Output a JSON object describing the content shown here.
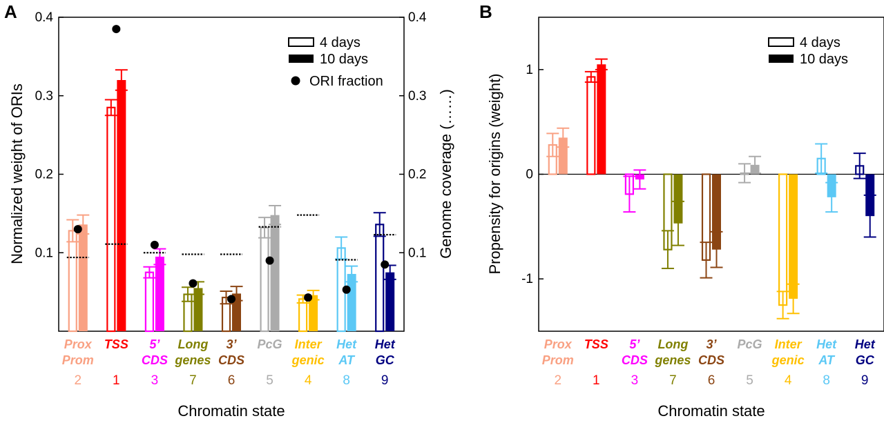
{
  "chart_data": [
    {
      "type": "bar",
      "panel": "A",
      "title": "",
      "xlabel": "Chromatin state",
      "ylabel": "Normalized weight of ORIs",
      "ylabel_right": "Genome coverage (……)",
      "ylim": [
        0,
        0.4
      ],
      "yticks": [
        "0.1",
        "0.2",
        "0.3",
        "0.4"
      ],
      "yticks_right": [
        "0.1",
        "0.2",
        "0.3",
        "0.4"
      ],
      "legend": {
        "open": "4 days",
        "filled": "10 days",
        "dot": "ORI fraction",
        "position": "top-right"
      },
      "categories": [
        {
          "line1": "Prox",
          "line2": "Prom",
          "num": "2",
          "color": "#F9A183"
        },
        {
          "line1": "TSS",
          "line2": "",
          "num": "1",
          "color": "#FF0000"
        },
        {
          "line1": "5’",
          "line2": "CDS",
          "num": "3",
          "color": "#FF00FF"
        },
        {
          "line1": "Long",
          "line2": "genes",
          "num": "7",
          "color": "#808000"
        },
        {
          "line1": "3’",
          "line2": "CDS",
          "num": "6",
          "color": "#8B4513"
        },
        {
          "line1": "PcG",
          "line2": "",
          "num": "5",
          "color": "#ABABAB"
        },
        {
          "line1": "Inter",
          "line2": "genic",
          "num": "4",
          "color": "#FFC000"
        },
        {
          "line1": "Het",
          "line2": "AT",
          "num": "8",
          "color": "#5BC8F5"
        },
        {
          "line1": "Het",
          "line2": "GC",
          "num": "9",
          "color": "#000080"
        }
      ],
      "series": [
        {
          "name": "4 days",
          "style": "open",
          "values": [
            0.128,
            0.285,
            0.075,
            0.047,
            0.043,
            0.132,
            0.041,
            0.106,
            0.136
          ],
          "err": [
            0.014,
            0.01,
            0.007,
            0.009,
            0.008,
            0.013,
            0.005,
            0.014,
            0.015
          ]
        },
        {
          "name": "10 days",
          "style": "filled",
          "values": [
            0.136,
            0.32,
            0.095,
            0.055,
            0.048,
            0.148,
            0.046,
            0.073,
            0.075
          ],
          "err": [
            0.012,
            0.013,
            0.01,
            0.008,
            0.009,
            0.012,
            0.006,
            0.01,
            0.009
          ]
        }
      ],
      "ori_fraction": [
        0.13,
        0.385,
        0.11,
        0.061,
        0.041,
        0.09,
        0.043,
        0.053,
        0.085
      ],
      "genome_coverage": [
        0.094,
        0.111,
        0.1,
        0.098,
        0.098,
        0.133,
        0.148,
        0.091,
        0.123
      ]
    },
    {
      "type": "bar",
      "panel": "B",
      "title": "",
      "xlabel": "Chromatin state",
      "ylabel": "Propensity for origins (weight)",
      "ylim": [
        -1.5,
        1.5
      ],
      "yticks": [
        "-1",
        "0",
        "1"
      ],
      "legend": {
        "open": "4 days",
        "filled": "10 days",
        "position": "top-right"
      },
      "series": [
        {
          "name": "4 days",
          "style": "open",
          "values": [
            0.28,
            0.93,
            -0.19,
            -0.72,
            -0.82,
            0.01,
            -1.25,
            0.15,
            0.08
          ],
          "err": [
            0.11,
            0.05,
            0.17,
            0.18,
            0.17,
            0.09,
            0.13,
            0.14,
            0.12
          ]
        },
        {
          "name": "10 days",
          "style": "filled",
          "values": [
            0.35,
            1.05,
            -0.05,
            -0.47,
            -0.72,
            0.09,
            -1.19,
            -0.22,
            -0.4
          ],
          "err": [
            0.09,
            0.05,
            0.09,
            0.21,
            0.17,
            0.08,
            0.14,
            0.14,
            0.2
          ]
        }
      ]
    }
  ]
}
